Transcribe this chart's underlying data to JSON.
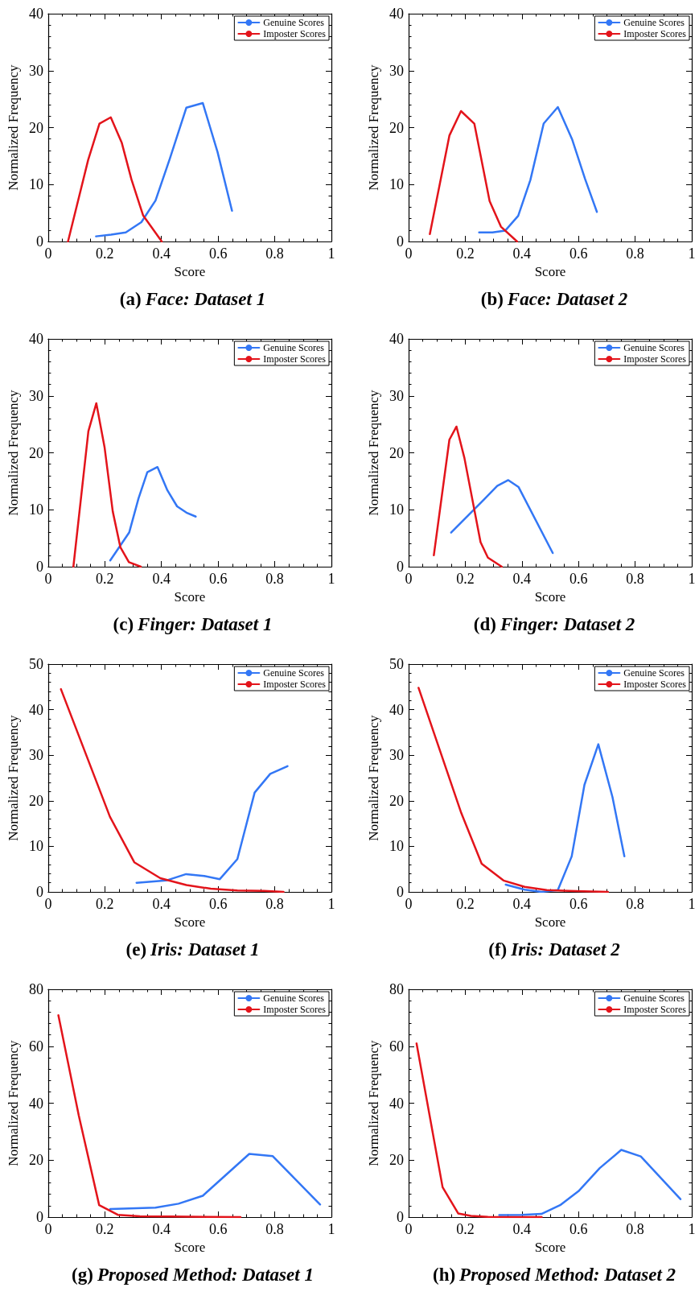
{
  "chart_data": [
    {
      "type": "line",
      "title": "(a) Face: Dataset 1",
      "xlabel": "Score",
      "ylabel": "Normalized Frequency",
      "xlim": [
        0,
        1
      ],
      "xticks": [
        0,
        0.2,
        0.4,
        0.6,
        0.8,
        1
      ],
      "ylim": [
        0,
        40
      ],
      "yticks": [
        0,
        10,
        20,
        30,
        40
      ],
      "legend": "top right",
      "marker": "none",
      "line_style": "solid",
      "series": [
        {
          "name": "Genuine Scores",
          "color": "#3377f5",
          "x": [
            0.169,
            0.222,
            0.274,
            0.329,
            0.379,
            0.43,
            0.488,
            0.546,
            0.598,
            0.649
          ],
          "values": [
            0.9,
            1.2,
            1.6,
            3.4,
            7.2,
            14.6,
            23.5,
            24.3,
            15.7,
            5.4
          ]
        },
        {
          "name": "Imposter Scores",
          "color": "#e3141b",
          "x": [
            0.07,
            0.141,
            0.181,
            0.221,
            0.26,
            0.294,
            0.335,
            0.401
          ],
          "values": [
            0,
            14.3,
            20.7,
            21.8,
            17.3,
            10.9,
            4.6,
            0
          ]
        }
      ]
    },
    {
      "type": "line",
      "title": "(b) Face: Dataset 2",
      "xlabel": "Score",
      "ylabel": "Normalized Frequency",
      "xlim": [
        0,
        1
      ],
      "xticks": [
        0,
        0.2,
        0.4,
        0.6,
        0.8,
        1
      ],
      "ylim": [
        0,
        40
      ],
      "yticks": [
        0,
        10,
        20,
        30,
        40
      ],
      "legend": "top right",
      "marker": "none",
      "line_style": "solid",
      "series": [
        {
          "name": "Genuine Scores",
          "color": "#3377f5",
          "x": [
            0.249,
            0.296,
            0.341,
            0.387,
            0.43,
            0.477,
            0.527,
            0.577,
            0.623,
            0.665
          ],
          "values": [
            1.6,
            1.6,
            1.9,
            4.5,
            10.8,
            20.7,
            23.6,
            18.0,
            11.0,
            5.2
          ]
        },
        {
          "name": "Imposter Scores",
          "color": "#e3141b",
          "x": [
            0.075,
            0.144,
            0.185,
            0.232,
            0.286,
            0.326,
            0.383
          ],
          "values": [
            1.3,
            18.6,
            22.9,
            20.7,
            7.1,
            2.6,
            0
          ]
        }
      ]
    },
    {
      "type": "line",
      "title": "(c) Finger: Dataset 1",
      "xlabel": "Score",
      "ylabel": "Normalized Frequency",
      "xlim": [
        0,
        1
      ],
      "xticks": [
        0,
        0.2,
        0.4,
        0.6,
        0.8,
        1
      ],
      "ylim": [
        0,
        40
      ],
      "yticks": [
        0,
        10,
        20,
        30,
        40
      ],
      "legend": "top right",
      "marker": "none",
      "line_style": "solid",
      "series": [
        {
          "name": "Genuine Scores",
          "color": "#3377f5",
          "x": [
            0.219,
            0.286,
            0.319,
            0.35,
            0.386,
            0.421,
            0.455,
            0.488,
            0.521
          ],
          "values": [
            1.1,
            6.0,
            12.0,
            16.6,
            17.5,
            13.4,
            10.6,
            9.5,
            8.8
          ]
        },
        {
          "name": "Imposter Scores",
          "color": "#e3141b",
          "x": [
            0.089,
            0.142,
            0.17,
            0.199,
            0.228,
            0.255,
            0.285,
            0.327
          ],
          "values": [
            0,
            23.8,
            28.7,
            21.0,
            9.7,
            3.4,
            0.8,
            0
          ]
        }
      ]
    },
    {
      "type": "line",
      "title": "(d) Finger: Dataset 2",
      "xlabel": "Score",
      "ylabel": "Normalized Frequency",
      "xlim": [
        0,
        1
      ],
      "xticks": [
        0,
        0.2,
        0.4,
        0.6,
        0.8,
        1
      ],
      "ylim": [
        0,
        40
      ],
      "yticks": [
        0,
        10,
        20,
        30,
        40
      ],
      "legend": "top right",
      "marker": "none",
      "line_style": "solid",
      "series": [
        {
          "name": "Genuine Scores",
          "color": "#3377f5",
          "x": [
            0.15,
            0.266,
            0.313,
            0.352,
            0.388,
            0.509
          ],
          "values": [
            6.0,
            11.8,
            14.2,
            15.2,
            14.0,
            2.4
          ]
        },
        {
          "name": "Imposter Scores",
          "color": "#e3141b",
          "x": [
            0.089,
            0.144,
            0.169,
            0.197,
            0.254,
            0.28,
            0.329
          ],
          "values": [
            2.0,
            22.3,
            24.6,
            19.1,
            4.3,
            1.6,
            0
          ]
        }
      ]
    },
    {
      "type": "line",
      "title": "(e) Iris: Dataset 1",
      "xlabel": "Score",
      "ylabel": "Normalized Frequency",
      "xlim": [
        0,
        1
      ],
      "xticks": [
        0,
        0.2,
        0.4,
        0.6,
        0.8,
        1
      ],
      "ylim": [
        0,
        50
      ],
      "yticks": [
        0,
        10,
        20,
        30,
        40,
        50
      ],
      "legend": "top right",
      "marker": "none",
      "line_style": "solid",
      "series": [
        {
          "name": "Genuine Scores",
          "color": "#3377f5",
          "x": [
            0.312,
            0.417,
            0.487,
            0.551,
            0.606,
            0.668,
            0.729,
            0.784,
            0.845
          ],
          "values": [
            2.0,
            2.5,
            3.9,
            3.5,
            2.8,
            7.2,
            21.8,
            25.9,
            27.6
          ]
        },
        {
          "name": "Imposter Scores",
          "color": "#e3141b",
          "x": [
            0.045,
            0.218,
            0.304,
            0.396,
            0.488,
            0.574,
            0.668,
            0.762,
            0.831
          ],
          "values": [
            44.5,
            16.5,
            6.5,
            3.0,
            1.5,
            0.7,
            0.3,
            0.2,
            0
          ]
        }
      ]
    },
    {
      "type": "line",
      "title": "(f) Iris: Dataset 2",
      "xlabel": "Score",
      "ylabel": "Normalized Frequency",
      "xlim": [
        0,
        1
      ],
      "xticks": [
        0,
        0.2,
        0.4,
        0.6,
        0.8,
        1
      ],
      "ylim": [
        0,
        50
      ],
      "yticks": [
        0,
        10,
        20,
        30,
        40,
        50
      ],
      "legend": "top right",
      "marker": "none",
      "line_style": "solid",
      "series": [
        {
          "name": "Genuine Scores",
          "color": "#3377f5",
          "x": [
            0.343,
            0.41,
            0.469,
            0.527,
            0.576,
            0.621,
            0.67,
            0.72,
            0.762
          ],
          "values": [
            1.6,
            0.5,
            0,
            0.4,
            7.8,
            23.5,
            32.4,
            20.8,
            7.8
          ]
        },
        {
          "name": "Imposter Scores",
          "color": "#e3141b",
          "x": [
            0.035,
            0.186,
            0.258,
            0.335,
            0.41,
            0.488,
            0.567,
            0.645,
            0.704
          ],
          "values": [
            44.8,
            17.3,
            6.2,
            2.5,
            1.1,
            0.4,
            0.2,
            0.1,
            0
          ]
        }
      ]
    },
    {
      "type": "line",
      "title": "(g) Proposed Method: Dataset 1",
      "xlabel": "Score",
      "ylabel": "Normalized Frequency",
      "xlim": [
        0,
        1
      ],
      "xticks": [
        0,
        0.2,
        0.4,
        0.6,
        0.8,
        1
      ],
      "ylim": [
        0,
        80
      ],
      "yticks": [
        0,
        20,
        40,
        60,
        80
      ],
      "legend": "top right",
      "marker": "none",
      "line_style": "solid",
      "series": [
        {
          "name": "Genuine Scores",
          "color": "#3377f5",
          "x": [
            0.219,
            0.379,
            0.46,
            0.546,
            0.71,
            0.793,
            0.96
          ],
          "values": [
            2.8,
            3.3,
            4.7,
            7.5,
            22.2,
            21.4,
            4.4
          ]
        },
        {
          "name": "Imposter Scores",
          "color": "#e3141b",
          "x": [
            0.036,
            0.108,
            0.18,
            0.246,
            0.324,
            0.433,
            0.559,
            0.679
          ],
          "values": [
            70.9,
            35.7,
            4.2,
            0.8,
            0.3,
            0.2,
            0.1,
            0
          ]
        }
      ]
    },
    {
      "type": "line",
      "title": "(h) Proposed Method: Dataset 2",
      "xlabel": "Score",
      "ylabel": "Normalized Frequency",
      "xlim": [
        0,
        1
      ],
      "xticks": [
        0,
        0.2,
        0.4,
        0.6,
        0.8,
        1
      ],
      "ylim": [
        0,
        80
      ],
      "yticks": [
        0,
        20,
        40,
        60,
        80
      ],
      "legend": "top right",
      "marker": "none",
      "line_style": "solid",
      "series": [
        {
          "name": "Genuine Scores",
          "color": "#3377f5",
          "x": [
            0.32,
            0.4,
            0.469,
            0.535,
            0.6,
            0.675,
            0.751,
            0.82,
            0.96
          ],
          "values": [
            0.7,
            0.8,
            1.1,
            4.2,
            9.1,
            17.2,
            23.6,
            21.3,
            6.3
          ]
        },
        {
          "name": "Imposter Scores",
          "color": "#e3141b",
          "x": [
            0.028,
            0.12,
            0.175,
            0.22,
            0.28,
            0.35,
            0.47
          ],
          "values": [
            61.0,
            10.5,
            1.3,
            0.4,
            0.1,
            0,
            0
          ]
        }
      ]
    }
  ]
}
